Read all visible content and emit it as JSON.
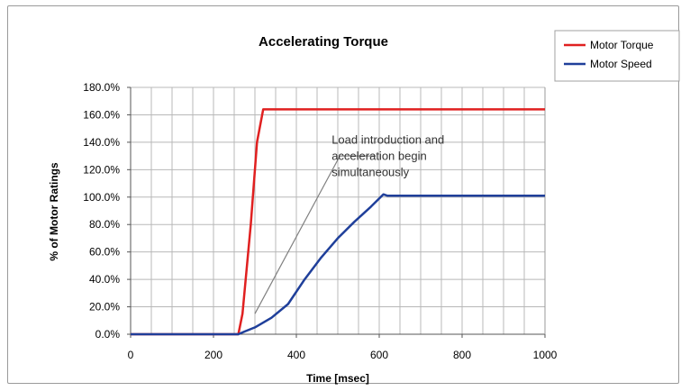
{
  "chart_data": {
    "type": "line",
    "title": "Accelerating Torque",
    "xlabel": "Time [msec]",
    "ylabel": "% of Motor Ratings",
    "xlim": [
      0,
      1000
    ],
    "ylim": [
      0,
      180
    ],
    "x_ticks": [
      0,
      200,
      400,
      600,
      800,
      1000
    ],
    "x_tick_labels": [
      "0",
      "200",
      "400",
      "600",
      "800",
      "1000"
    ],
    "x_minor_step": 50,
    "y_ticks": [
      0,
      20,
      40,
      60,
      80,
      100,
      120,
      140,
      160,
      180
    ],
    "y_tick_labels": [
      "0.0%",
      "20.0%",
      "40.0%",
      "60.0%",
      "80.0%",
      "100.0%",
      "120.0%",
      "140.0%",
      "160.0%",
      "180.0%"
    ],
    "grid": true,
    "legend_position": "top-right",
    "series": [
      {
        "name": "Motor Torque",
        "color": "#e02020",
        "x": [
          0,
          260,
          270,
          290,
          305,
          320,
          400,
          500,
          600,
          700,
          800,
          900,
          1000
        ],
        "y": [
          0,
          0,
          15,
          80,
          140,
          164,
          164,
          164,
          164,
          164,
          164,
          164,
          164
        ]
      },
      {
        "name": "Motor Speed",
        "color": "#1f3f9a",
        "x": [
          0,
          260,
          275,
          300,
          340,
          380,
          420,
          460,
          500,
          540,
          580,
          610,
          620,
          700,
          800,
          900,
          1000
        ],
        "y": [
          0,
          0,
          2,
          5,
          12,
          22,
          40,
          56,
          70,
          82,
          93,
          102,
          101,
          101,
          101,
          101,
          101
        ]
      }
    ],
    "annotations": [
      {
        "text_lines": [
          "Load introduction and",
          "acceleration begin",
          "simultaneously"
        ],
        "x": 620,
        "y": 131,
        "arrow_from": [
          505,
          130
        ],
        "arrow_to": [
          300,
          15
        ],
        "color": "#808080"
      }
    ]
  }
}
